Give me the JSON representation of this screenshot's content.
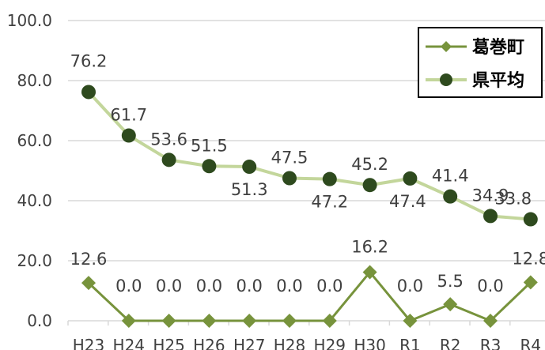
{
  "chart_data": {
    "type": "line",
    "categories": [
      "H23",
      "H24",
      "H25",
      "H26",
      "H27",
      "H28",
      "H29",
      "H30",
      "R1",
      "R2",
      "R3",
      "R4"
    ],
    "ylim": [
      0,
      100
    ],
    "yticks": [
      "0.0",
      "20.0",
      "40.0",
      "60.0",
      "80.0",
      "100.0"
    ],
    "grid": true,
    "legend_position": "top-right",
    "series": [
      {
        "name": "葛巻町",
        "marker": "diamond",
        "color": "#77933c",
        "values": [
          12.6,
          0.0,
          0.0,
          0.0,
          0.0,
          0.0,
          0.0,
          16.2,
          0.0,
          5.5,
          0.0,
          12.8
        ],
        "labels": [
          "12.6",
          "0.0",
          "0.0",
          "0.0",
          "0.0",
          "0.0",
          "0.0",
          "16.2",
          "0.0",
          "5.5",
          "0.0",
          "12.8"
        ]
      },
      {
        "name": "県平均",
        "marker": "circle",
        "color": "#c3d69b",
        "marker_color": "#2e4a1e",
        "values": [
          76.2,
          61.7,
          53.6,
          51.5,
          51.3,
          47.5,
          47.2,
          45.2,
          47.4,
          41.4,
          34.9,
          33.8
        ],
        "labels": [
          "76.2",
          "61.7",
          "53.6",
          "51.5",
          "51.3",
          "47.5",
          "47.2",
          "45.2",
          "47.4",
          "41.4",
          "34.9",
          "33.8"
        ]
      }
    ]
  }
}
